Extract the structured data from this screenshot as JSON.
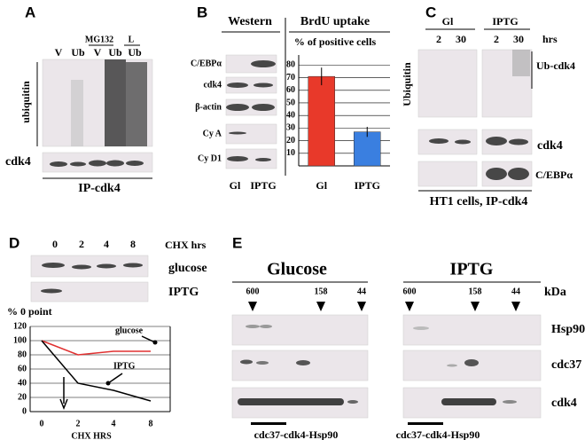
{
  "panel_a": {
    "label": "A",
    "treatments": [
      "MG132",
      "L"
    ],
    "lanes": [
      "V",
      "Ub",
      "V",
      "Ub",
      "Ub"
    ],
    "blots": [
      "ubiquitin",
      "cdk4"
    ],
    "caption": "IP-cdk4"
  },
  "panel_b": {
    "label": "B",
    "western_title": "Western",
    "blots": [
      "C/EBPα",
      "cdk4",
      "β-actin",
      "Cy A",
      "Cy D1"
    ],
    "lanes": [
      "Gl",
      "IPTG"
    ]
  },
  "panel_c": {
    "label": "C",
    "groups": [
      "Gl",
      "IPTG"
    ],
    "times": [
      "2",
      "30",
      "2",
      "30"
    ],
    "time_unit": "hrs",
    "blots": [
      "Ubiquitin",
      "cdk4",
      "C/EBPα"
    ],
    "band_label": "Ub-cdk4",
    "caption": "HT1 cells, IP-cdk4"
  },
  "panel_d": {
    "label": "D",
    "times": [
      "0",
      "2",
      "4",
      "8"
    ],
    "time_label": "CHX hrs",
    "blots": [
      "glucose",
      "IPTG"
    ]
  },
  "panel_e": {
    "label": "E",
    "groups": [
      "Glucose",
      "IPTG"
    ],
    "markers": [
      "600",
      "158",
      "44"
    ],
    "unit": "kDa",
    "blots": [
      "Hsp90",
      "cdc37",
      "cdk4"
    ],
    "complex": "cdc37-cdk4-Hsp90"
  },
  "chart_data": [
    {
      "type": "bar",
      "title": "BrdU uptake",
      "subtitle": "% of positive cells",
      "categories": [
        "Gl",
        "IPTG"
      ],
      "values": [
        71,
        27
      ],
      "errors": [
        7,
        4
      ],
      "colors": [
        "#e8392a",
        "#3a7fe0"
      ],
      "ylim": [
        0,
        88
      ],
      "yticks": [
        10,
        20,
        30,
        40,
        50,
        60,
        70,
        80
      ]
    },
    {
      "type": "line",
      "y_label": "% 0 point",
      "x_label": "CHX HRS",
      "categories": [
        "0",
        "2",
        "4",
        "8"
      ],
      "series": [
        {
          "name": "glucose",
          "color": "#e03030",
          "values": [
            100,
            80,
            85,
            85
          ]
        },
        {
          "name": "IPTG",
          "color": "#000000",
          "values": [
            100,
            40,
            30,
            15
          ]
        }
      ],
      "ylim": [
        0,
        120
      ],
      "yticks": [
        0,
        20,
        40,
        60,
        80,
        100,
        120
      ],
      "grid": true
    }
  ]
}
